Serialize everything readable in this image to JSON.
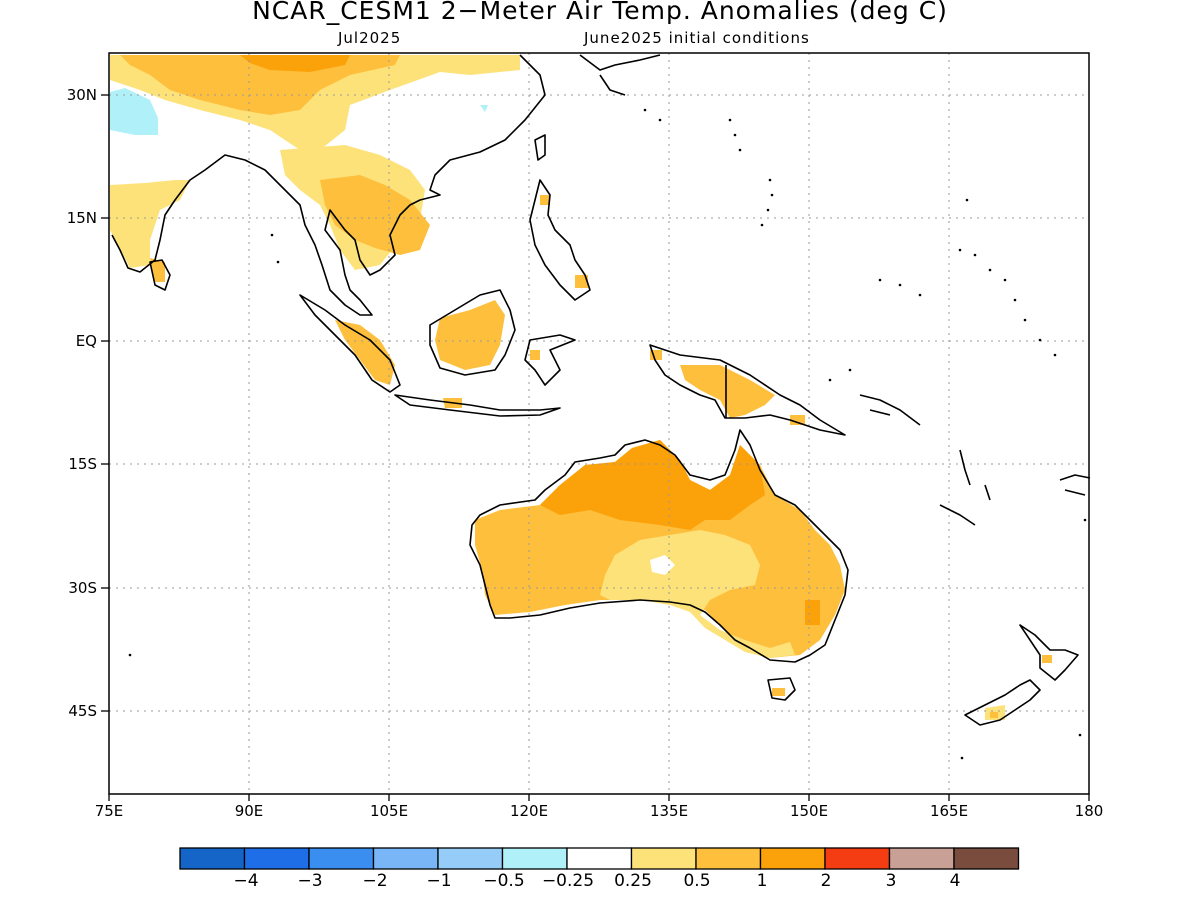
{
  "title": "NCAR_CESM1 2−Meter Air Temp. Anomalies (deg C)",
  "subtitle_left": "Jul2025",
  "subtitle_right": "June2025 initial conditions",
  "lat_labels": [
    "30N",
    "15N",
    "EQ",
    "15S",
    "30S",
    "45S"
  ],
  "lon_labels": [
    "75E",
    "90E",
    "105E",
    "120E",
    "135E",
    "150E",
    "165E",
    "180"
  ],
  "colorbar": {
    "labels": [
      "−4",
      "−3",
      "−2",
      "−1",
      "−0.5",
      "−0.25",
      "0.25",
      "0.5",
      "1",
      "2",
      "3",
      "4"
    ],
    "colors": [
      "#1565c8",
      "#1e6ee8",
      "#3a8ef0",
      "#78b6f8",
      "#96cdf8",
      "#b0f0f8",
      "#ffffff",
      "#fde27a",
      "#fdbf3c",
      "#fba10a",
      "#f53d14",
      "#c8a096",
      "#7a4c3e"
    ]
  },
  "map": {
    "lon_range": [
      75,
      180
    ],
    "lat_range": [
      -48,
      35
    ],
    "anomaly_colors": {
      "cold_light": "#b0f0f8",
      "warm_pale": "#fde27a",
      "warm_light": "#fdbf3c",
      "warm_orange": "#fba10a"
    }
  }
}
